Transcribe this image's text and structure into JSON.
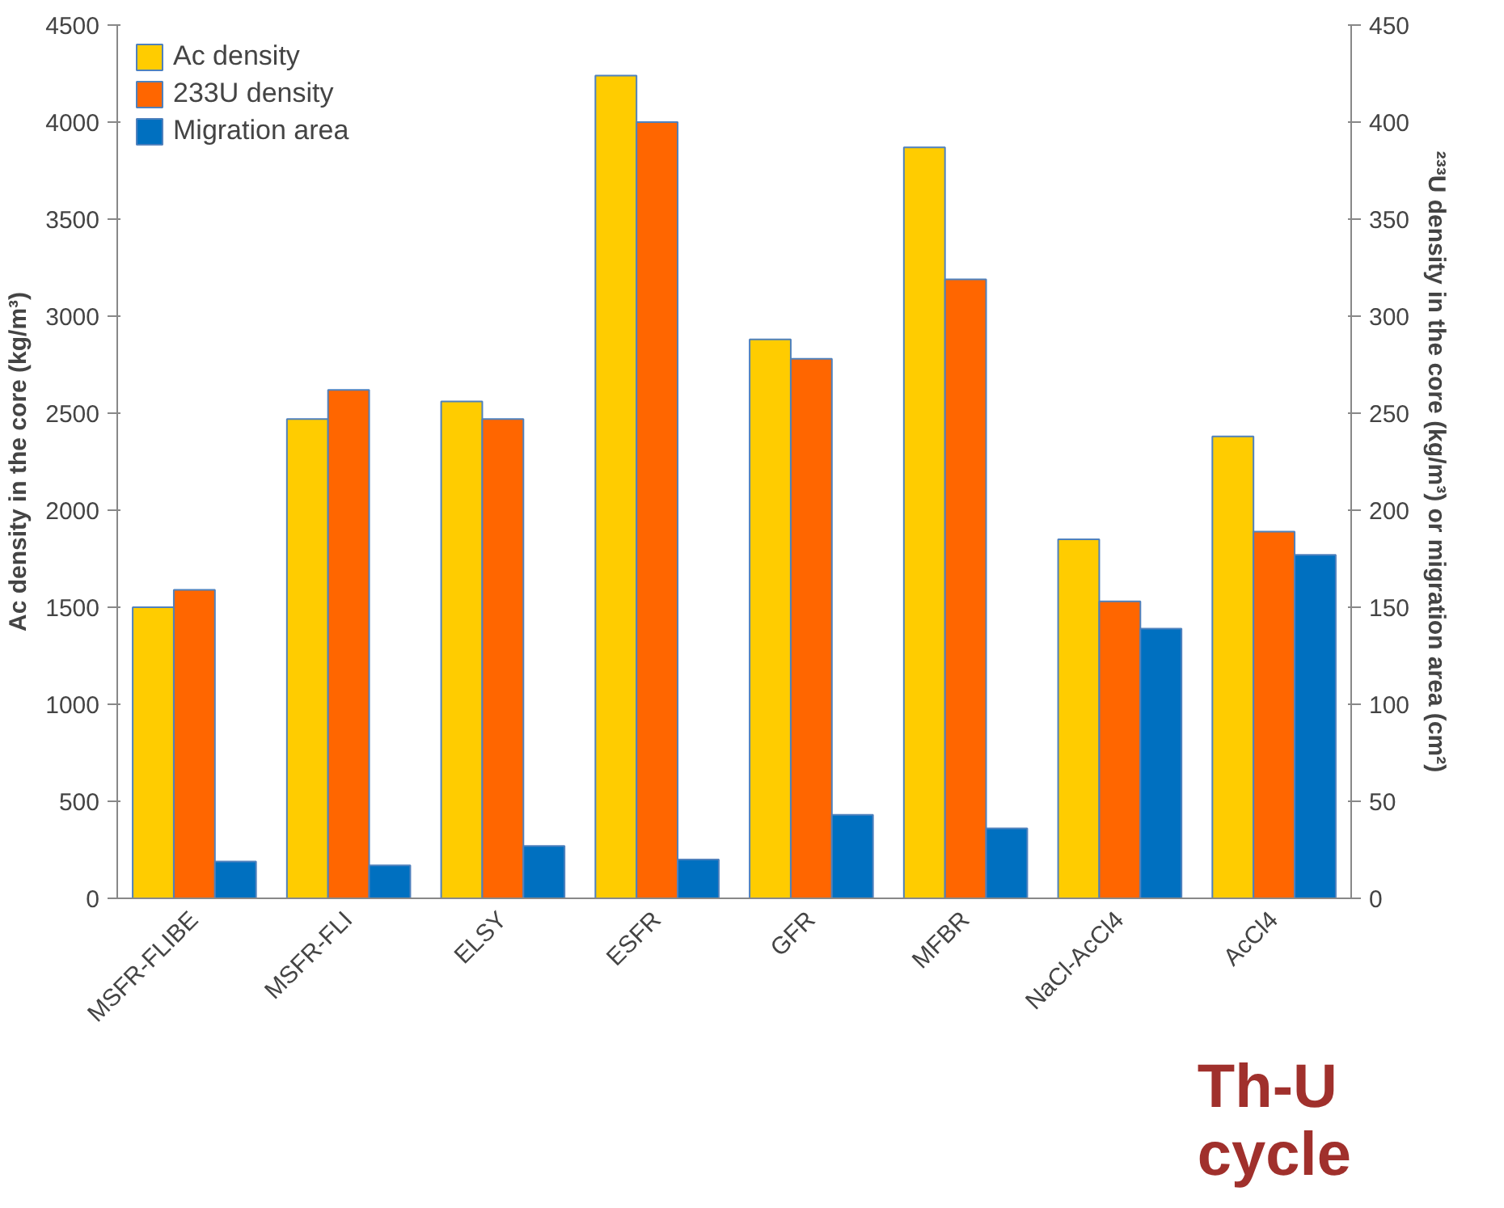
{
  "chart_data": {
    "type": "bar",
    "categories": [
      "MSFR-FLIBE",
      "MSFR-FLI",
      "ELSY",
      "ESFR",
      "GFR",
      "MFBR",
      "NaCl-AcCl4",
      "AcCl4"
    ],
    "series": [
      {
        "name": "Ac density",
        "color": "#ffcc00",
        "values": [
          1500,
          2470,
          2560,
          4240,
          2880,
          3870,
          1850,
          2380
        ]
      },
      {
        "name": "233U density",
        "color": "#ff6600",
        "axis": "y2",
        "values": [
          159,
          262,
          247,
          400,
          278,
          319,
          153,
          189
        ]
      },
      {
        "name": "Migration area",
        "color": "#0070c0",
        "axis": "y2",
        "values": [
          19,
          17,
          27,
          20,
          43,
          36,
          139,
          177
        ]
      }
    ],
    "ylabel": "Ac density in the core (kg/m³)",
    "y2label": "²³³U density in the core (kg/m³) or migration area (cm²)",
    "ylim": [
      0,
      4500
    ],
    "yticks": [
      0,
      500,
      1000,
      1500,
      2000,
      2500,
      3000,
      3500,
      4000,
      4500
    ],
    "y2lim": [
      0,
      450
    ],
    "y2ticks": [
      0,
      50,
      100,
      150,
      200,
      250,
      300,
      350,
      400,
      450
    ],
    "legend": "top left",
    "grid": false,
    "annotations": [
      "Th-U cycle"
    ]
  }
}
